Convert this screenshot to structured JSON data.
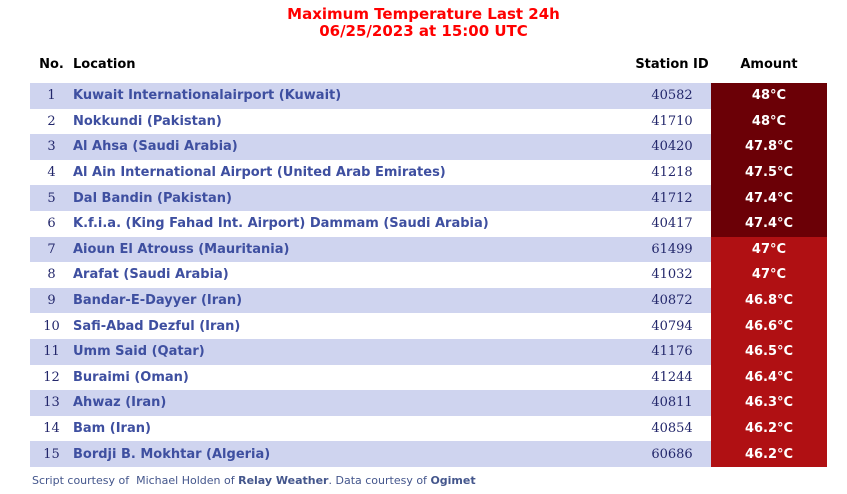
{
  "title": {
    "line1": "Maximum Temperature Last 24h",
    "line2": "06/25/2023 at 15:00 UTC"
  },
  "table": {
    "headers": {
      "no": "No.",
      "location": "Location",
      "station": "Station ID",
      "amount": "Amount"
    },
    "rows": [
      {
        "no": "1",
        "location": "Kuwait Internationalairport (Kuwait)",
        "station_id": "40582",
        "amount": "48°C",
        "tier": "dark"
      },
      {
        "no": "2",
        "location": "Nokkundi (Pakistan)",
        "station_id": "41710",
        "amount": "48°C",
        "tier": "dark"
      },
      {
        "no": "3",
        "location": "Al Ahsa (Saudi Arabia)",
        "station_id": "40420",
        "amount": "47.8°C",
        "tier": "dark"
      },
      {
        "no": "4",
        "location": "Al Ain International Airport (United Arab Emirates)",
        "station_id": "41218",
        "amount": "47.5°C",
        "tier": "dark"
      },
      {
        "no": "5",
        "location": "Dal Bandin (Pakistan)",
        "station_id": "41712",
        "amount": "47.4°C",
        "tier": "dark"
      },
      {
        "no": "6",
        "location": "K.f.i.a. (King Fahad Int. Airport) Dammam (Saudi Arabia)",
        "station_id": "40417",
        "amount": "47.4°C",
        "tier": "dark"
      },
      {
        "no": "7",
        "location": "Aioun El Atrouss (Mauritania)",
        "station_id": "61499",
        "amount": "47°C",
        "tier": "bright"
      },
      {
        "no": "8",
        "location": "Arafat (Saudi Arabia)",
        "station_id": "41032",
        "amount": "47°C",
        "tier": "bright"
      },
      {
        "no": "9",
        "location": "Bandar-E-Dayyer (Iran)",
        "station_id": "40872",
        "amount": "46.8°C",
        "tier": "bright"
      },
      {
        "no": "10",
        "location": "Safi-Abad Dezful (Iran)",
        "station_id": "40794",
        "amount": "46.6°C",
        "tier": "bright"
      },
      {
        "no": "11",
        "location": "Umm Said (Qatar)",
        "station_id": "41176",
        "amount": "46.5°C",
        "tier": "bright"
      },
      {
        "no": "12",
        "location": "Buraimi (Oman)",
        "station_id": "41244",
        "amount": "46.4°C",
        "tier": "bright"
      },
      {
        "no": "13",
        "location": "Ahwaz (Iran)",
        "station_id": "40811",
        "amount": "46.3°C",
        "tier": "bright"
      },
      {
        "no": "14",
        "location": "Bam (Iran)",
        "station_id": "40854",
        "amount": "46.2°C",
        "tier": "bright"
      },
      {
        "no": "15",
        "location": "Bordji B. Mokhtar (Algeria)",
        "station_id": "60686",
        "amount": "46.2°C",
        "tier": "bright"
      }
    ]
  },
  "footer": {
    "parts": [
      {
        "text": "Script courtesy of  Michael Holden of ",
        "bold": false
      },
      {
        "text": "Relay Weather",
        "bold": true
      },
      {
        "text": ". Data courtesy of ",
        "bold": false
      },
      {
        "text": "Ogimet",
        "bold": true
      }
    ]
  },
  "colors": {
    "title_red": "#ff0000",
    "header_text": "#000000",
    "row_bg": "#ffffff",
    "row_alt_bg": "#cfd4ef",
    "location_text": "#3e4fa0",
    "numeric_text": "#23276b",
    "amount_text": "#ffffff",
    "amount_dark": "#6b0006",
    "amount_bright": "#b01013",
    "footer_text": "#44568c"
  }
}
